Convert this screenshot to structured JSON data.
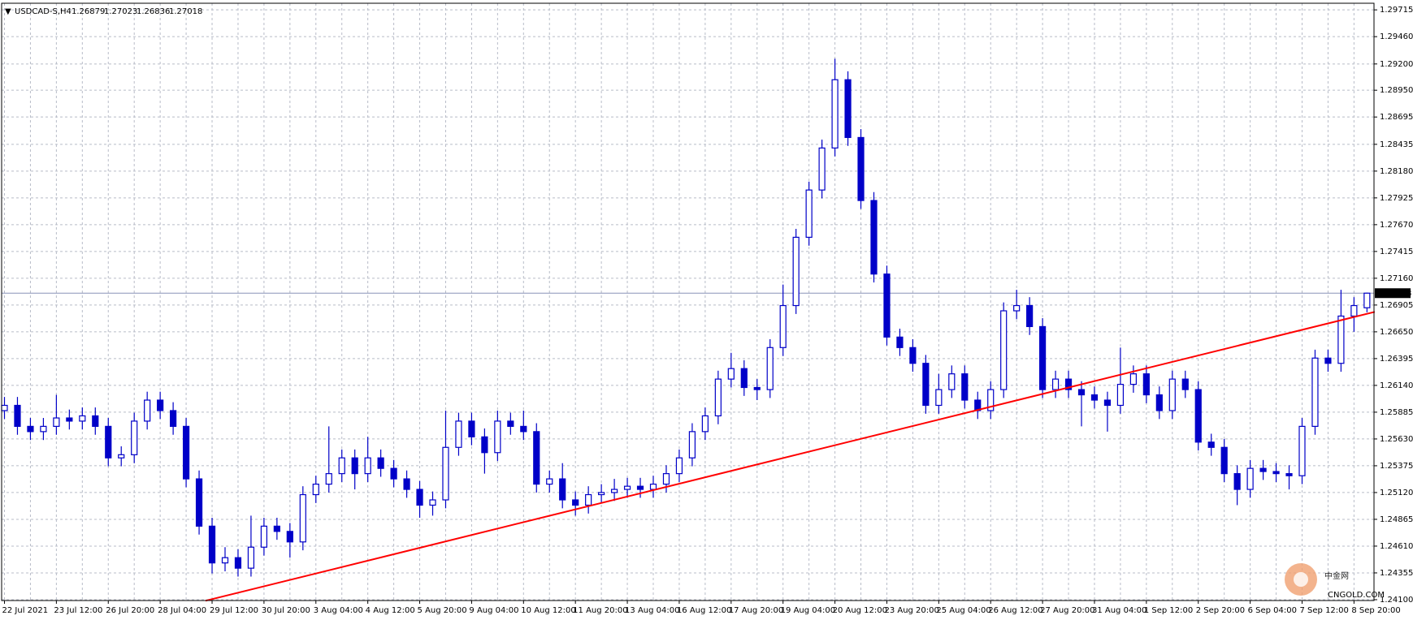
{
  "chart_data": {
    "type": "candlestick",
    "symbol": "USDCAD-S,H4",
    "color": "#0000c8",
    "up_fill": "#ffffff",
    "grid": true,
    "ylim": [
      1.24092,
      1.29778
    ],
    "yticks": [
      {
        "value": 1.29715,
        "label": "1.29715"
      },
      {
        "value": 1.2946,
        "label": "1.29460"
      },
      {
        "value": 1.292,
        "label": "1.29200"
      },
      {
        "value": 1.2895,
        "label": "1.28950"
      },
      {
        "value": 1.28695,
        "label": "1.28695"
      },
      {
        "value": 1.28435,
        "label": "1.28435"
      },
      {
        "value": 1.2818,
        "label": "1.28180"
      },
      {
        "value": 1.27925,
        "label": "1.27925"
      },
      {
        "value": 1.2767,
        "label": "1.27670"
      },
      {
        "value": 1.27415,
        "label": "1.27415"
      },
      {
        "value": 1.2716,
        "label": "1.27160"
      },
      {
        "value": 1.26905,
        "label": "1.26905"
      },
      {
        "value": 1.2665,
        "label": "1.26650"
      },
      {
        "value": 1.26395,
        "label": "1.26395"
      },
      {
        "value": 1.2614,
        "label": "1.26140"
      },
      {
        "value": 1.25885,
        "label": "1.25885"
      },
      {
        "value": 1.2563,
        "label": "1.25630"
      },
      {
        "value": 1.25375,
        "label": "1.25375"
      },
      {
        "value": 1.2512,
        "label": "1.25120"
      },
      {
        "value": 1.24865,
        "label": "1.24865"
      },
      {
        "value": 1.2461,
        "label": "1.24610"
      },
      {
        "value": 1.24355,
        "label": "1.24355"
      },
      {
        "value": 1.241,
        "label": "1.24100"
      }
    ],
    "x_labels": [
      "22 Jul 2021",
      "23 Jul 12:00",
      "26 Jul 20:00",
      "28 Jul 04:00",
      "29 Jul 12:00",
      "30 Jul 20:00",
      "3 Aug 04:00",
      "4 Aug 12:00",
      "5 Aug 20:00",
      "9 Aug 04:00",
      "10 Aug 12:00",
      "11 Aug 20:00",
      "13 Aug 04:00",
      "16 Aug 12:00",
      "17 Aug 20:00",
      "19 Aug 04:00",
      "20 Aug 12:00",
      "23 Aug 20:00",
      "25 Aug 04:00",
      "26 Aug 12:00",
      "27 Aug 20:00",
      "31 Aug 04:00",
      "1 Sep 12:00",
      "2 Sep 20:00",
      "6 Sep 04:00",
      "7 Sep 12:00",
      "8 Sep 20:00"
    ],
    "candles": {
      "open": [
        1.259,
        1.2595,
        1.2575,
        1.257,
        1.2575,
        1.2583,
        1.258,
        1.2585,
        1.2575,
        1.2545,
        1.2548,
        1.258,
        1.26,
        1.259,
        1.2575,
        1.2525,
        1.248,
        1.2445,
        1.245,
        1.244,
        1.246,
        1.248,
        1.2475,
        1.2465,
        1.251,
        1.252,
        1.253,
        1.2545,
        1.253,
        1.2545,
        1.2535,
        1.2525,
        1.2515,
        1.25,
        1.2505,
        1.2555,
        1.258,
        1.2565,
        1.255,
        1.258,
        1.2575,
        1.257,
        1.252,
        1.2525,
        1.2505,
        1.25,
        1.251,
        1.2512,
        1.2515,
        1.2518,
        1.2515,
        1.252,
        1.253,
        1.2545,
        1.257,
        1.2585,
        1.262,
        1.263,
        1.2612,
        1.261,
        1.265,
        1.269,
        1.2755,
        1.28,
        1.284,
        1.2905,
        1.285,
        1.279,
        1.272,
        1.266,
        1.265,
        1.2635,
        1.2595,
        1.261,
        1.2625,
        1.26,
        1.259,
        1.261,
        1.2685,
        1.269,
        1.267,
        1.261,
        1.262,
        1.261,
        1.2605,
        1.26,
        1.2595,
        1.2615,
        1.2625,
        1.2605,
        1.259,
        1.262,
        1.261,
        1.256,
        1.2555,
        1.253,
        1.2515,
        1.2535,
        1.2532,
        1.253,
        1.2528,
        1.2575,
        1.264,
        1.2635,
        1.268,
        1.26879
      ],
      "high": [
        1.2603,
        1.2603,
        1.2583,
        1.2583,
        1.2605,
        1.2591,
        1.2593,
        1.2593,
        1.2583,
        1.2556,
        1.2588,
        1.2608,
        1.2608,
        1.2598,
        1.2583,
        1.2533,
        1.2488,
        1.246,
        1.2458,
        1.249,
        1.2488,
        1.2488,
        1.2483,
        1.2518,
        1.2528,
        1.2575,
        1.2553,
        1.2553,
        1.2565,
        1.2553,
        1.2543,
        1.2533,
        1.2523,
        1.2513,
        1.259,
        1.2588,
        1.2588,
        1.2573,
        1.259,
        1.2588,
        1.259,
        1.2578,
        1.2533,
        1.254,
        1.2513,
        1.2518,
        1.252,
        1.2525,
        1.2526,
        1.2526,
        1.2528,
        1.2538,
        1.2553,
        1.2578,
        1.2593,
        1.2628,
        1.2645,
        1.2638,
        1.262,
        1.2658,
        1.271,
        1.2763,
        1.2808,
        1.2848,
        1.2925,
        1.2913,
        1.2858,
        1.2798,
        1.2728,
        1.2668,
        1.2658,
        1.2643,
        1.2625,
        1.2633,
        1.2633,
        1.2608,
        1.2618,
        1.2693,
        1.2705,
        1.2698,
        1.2678,
        1.2628,
        1.2628,
        1.2618,
        1.2613,
        1.2608,
        1.265,
        1.2633,
        1.2633,
        1.2613,
        1.2628,
        1.2628,
        1.2618,
        1.2568,
        1.2563,
        1.2538,
        1.2543,
        1.2543,
        1.254,
        1.2538,
        1.2583,
        1.2648,
        1.2648,
        1.2705,
        1.2698,
        1.27023
      ],
      "low": [
        1.2582,
        1.2567,
        1.2562,
        1.2562,
        1.2567,
        1.2572,
        1.2572,
        1.2567,
        1.2537,
        1.2537,
        1.254,
        1.2572,
        1.2582,
        1.2567,
        1.2517,
        1.2472,
        1.2435,
        1.2437,
        1.2432,
        1.2432,
        1.2452,
        1.2467,
        1.245,
        1.2457,
        1.2502,
        1.2512,
        1.2522,
        1.2515,
        1.2522,
        1.2527,
        1.2517,
        1.2507,
        1.2488,
        1.249,
        1.2497,
        1.2547,
        1.2557,
        1.253,
        1.2542,
        1.2567,
        1.2562,
        1.2512,
        1.2512,
        1.2497,
        1.249,
        1.2492,
        1.2502,
        1.2504,
        1.2507,
        1.2507,
        1.2507,
        1.2512,
        1.2522,
        1.2537,
        1.2562,
        1.2577,
        1.2612,
        1.2604,
        1.26,
        1.2602,
        1.2642,
        1.2682,
        1.2747,
        1.2792,
        1.2832,
        1.2842,
        1.2782,
        1.2712,
        1.2652,
        1.2642,
        1.2627,
        1.2587,
        1.2587,
        1.2602,
        1.2592,
        1.2582,
        1.2582,
        1.2602,
        1.2677,
        1.2662,
        1.2602,
        1.2602,
        1.2602,
        1.2575,
        1.2592,
        1.257,
        1.2587,
        1.2607,
        1.2597,
        1.2582,
        1.2582,
        1.2602,
        1.2552,
        1.2547,
        1.2522,
        1.25,
        1.2507,
        1.2524,
        1.2522,
        1.2515,
        1.252,
        1.2567,
        1.2627,
        1.2627,
        1.2665,
        1.26836
      ],
      "close": [
        1.2595,
        1.2575,
        1.257,
        1.2575,
        1.2583,
        1.258,
        1.2585,
        1.2575,
        1.2545,
        1.2548,
        1.258,
        1.26,
        1.259,
        1.2575,
        1.2525,
        1.248,
        1.2445,
        1.245,
        1.244,
        1.246,
        1.248,
        1.2475,
        1.2465,
        1.251,
        1.252,
        1.253,
        1.2545,
        1.253,
        1.2545,
        1.2535,
        1.2525,
        1.2515,
        1.25,
        1.2505,
        1.2555,
        1.258,
        1.2565,
        1.255,
        1.258,
        1.2575,
        1.257,
        1.252,
        1.2525,
        1.2505,
        1.25,
        1.251,
        1.2512,
        1.2515,
        1.2518,
        1.2515,
        1.252,
        1.253,
        1.2545,
        1.257,
        1.2585,
        1.262,
        1.263,
        1.2612,
        1.261,
        1.265,
        1.269,
        1.2755,
        1.28,
        1.284,
        1.2905,
        1.285,
        1.279,
        1.272,
        1.266,
        1.265,
        1.2635,
        1.2595,
        1.261,
        1.2625,
        1.26,
        1.259,
        1.261,
        1.2685,
        1.269,
        1.267,
        1.261,
        1.262,
        1.261,
        1.2605,
        1.26,
        1.2595,
        1.2615,
        1.2625,
        1.2605,
        1.259,
        1.262,
        1.261,
        1.256,
        1.2555,
        1.253,
        1.2515,
        1.2535,
        1.2532,
        1.253,
        1.2528,
        1.2575,
        1.264,
        1.2635,
        1.268,
        1.269,
        1.27018
      ]
    },
    "trend_line": {
      "color": "#ff0000",
      "x": [
        15.5,
        105.6
      ],
      "y": [
        1.2409,
        1.2684
      ]
    },
    "watermark": {
      "name": "中金网",
      "site": "CNGOLD.COM"
    }
  }
}
